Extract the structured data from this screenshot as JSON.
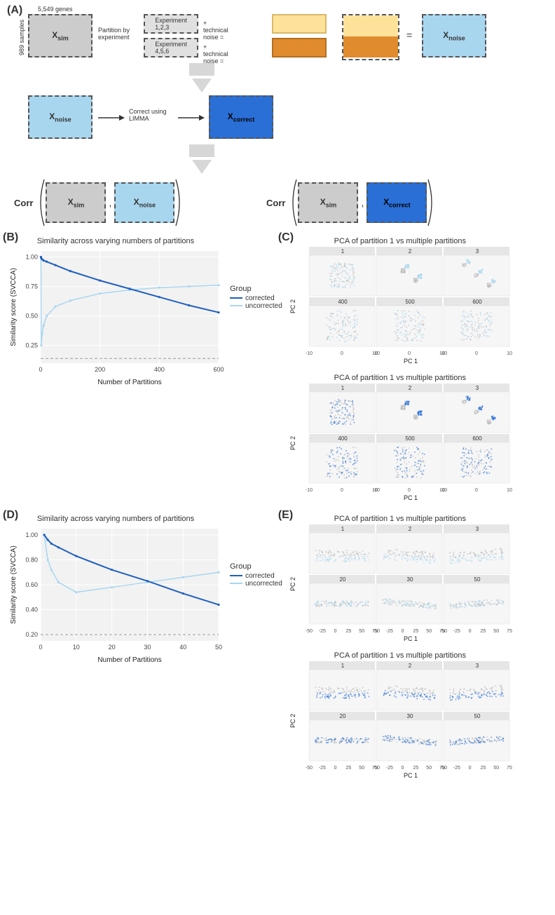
{
  "panelA": {
    "label": "(A)",
    "genes_label": "5,549 genes",
    "samples_label": "989 samples",
    "x_sim": "X",
    "x_sim_sub": "sim",
    "x_noise": "X",
    "x_noise_sub": "noise",
    "x_correct": "X",
    "x_correct_sub": "correct",
    "partition_label": "Partition by\nexperiment",
    "exp_123": "Experiment\n1,2,3",
    "exp_456": "Experiment\n4,5,6",
    "plus_noise": "+ technical noise =",
    "equals": "=",
    "correct_label": "Correct using\nLIMMA",
    "corr_label": "Corr",
    "colors": {
      "sim": "#cccccc",
      "exp": "#e0e0e0",
      "noise_light": "#ffe29a",
      "noise_dark": "#e08b2e",
      "xnoise": "#a9d6ef",
      "xcorrect": "#2a6fd6"
    }
  },
  "panelB": {
    "label": "(B)",
    "title": "Similarity across varying numbers of partitions",
    "xlabel": "Number of Partitions",
    "ylabel": "Similarity score (SVCCA)",
    "xlim": [
      0,
      600
    ],
    "ylim": [
      0.1,
      1.05
    ],
    "xticks": [
      0,
      200,
      400,
      600
    ],
    "yticks": [
      0.25,
      0.5,
      0.75,
      1.0
    ],
    "baseline": 0.14,
    "corrected": {
      "x": [
        1,
        2,
        5,
        10,
        20,
        50,
        100,
        200,
        300,
        400,
        500,
        600
      ],
      "y": [
        1.0,
        0.99,
        0.98,
        0.97,
        0.96,
        0.93,
        0.88,
        0.8,
        0.73,
        0.66,
        0.59,
        0.53
      ]
    },
    "uncorrected": {
      "x": [
        1,
        2,
        5,
        10,
        20,
        50,
        100,
        200,
        300,
        400,
        500,
        600
      ],
      "y": [
        1.0,
        0.25,
        0.35,
        0.42,
        0.5,
        0.58,
        0.63,
        0.69,
        0.72,
        0.74,
        0.75,
        0.76
      ]
    },
    "colors": {
      "corrected": "#1f5fbf",
      "uncorrected": "#a9d6ef",
      "grid": "#d0d0d0",
      "baseline": "#999999"
    },
    "legend": {
      "title": "Group",
      "items": [
        "corrected",
        "uncorrected"
      ]
    }
  },
  "panelC": {
    "label": "(C)",
    "title": "PCA of partition 1 vs multiple partitions",
    "facets": [
      "1",
      "2",
      "3",
      "400",
      "500",
      "600"
    ],
    "xlabel": "PC 1",
    "ylabel": "PC 2",
    "xticks": [
      -10,
      0,
      10
    ],
    "yticks_top": [
      -10,
      -5,
      0,
      5,
      10,
      15
    ],
    "yticks_bot": [
      -10,
      0,
      10
    ],
    "colors": {
      "ref": "#bbbbbb",
      "uncorrected": "#a9d6ef",
      "corrected": "#2a6fd6",
      "facet_bg": "#e6e6e6"
    }
  },
  "panelD": {
    "label": "(D)",
    "title": "Similarity across varying numbers of partitions",
    "xlabel": "Number of Partitions",
    "ylabel": "Similarity score (SVCCA)",
    "xlim": [
      0,
      50
    ],
    "ylim": [
      0.15,
      1.05
    ],
    "xticks": [
      0,
      10,
      20,
      30,
      40,
      50
    ],
    "yticks": [
      0.2,
      0.4,
      0.6,
      0.8,
      1.0
    ],
    "baseline": 0.2,
    "corrected": {
      "x": [
        1,
        2,
        3,
        5,
        10,
        20,
        30,
        40,
        50
      ],
      "y": [
        1.0,
        0.96,
        0.93,
        0.9,
        0.83,
        0.72,
        0.63,
        0.53,
        0.44
      ]
    },
    "uncorrected": {
      "x": [
        1,
        2,
        3,
        5,
        10,
        20,
        30,
        40,
        50
      ],
      "y": [
        1.0,
        0.8,
        0.72,
        0.62,
        0.54,
        0.58,
        0.62,
        0.66,
        0.7
      ]
    },
    "colors": {
      "corrected": "#1f5fbf",
      "uncorrected": "#a9d6ef",
      "grid": "#d0d0d0",
      "baseline": "#999999"
    },
    "legend": {
      "title": "Group",
      "items": [
        "corrected",
        "uncorrected"
      ]
    }
  },
  "panelE": {
    "label": "(E)",
    "title": "PCA of partition 1 vs multiple partitions",
    "facets": [
      "1",
      "2",
      "3",
      "20",
      "30",
      "50"
    ],
    "xlabel": "PC 1",
    "ylabel": "PC 2",
    "xticks": [
      -50,
      -25,
      0,
      25,
      50,
      75
    ],
    "yticks": [
      -50,
      0,
      50,
      100,
      150
    ],
    "colors": {
      "ref": "#bbbbbb",
      "uncorrected": "#a9d6ef",
      "corrected": "#2a6fd6",
      "facet_bg": "#e6e6e6"
    }
  }
}
